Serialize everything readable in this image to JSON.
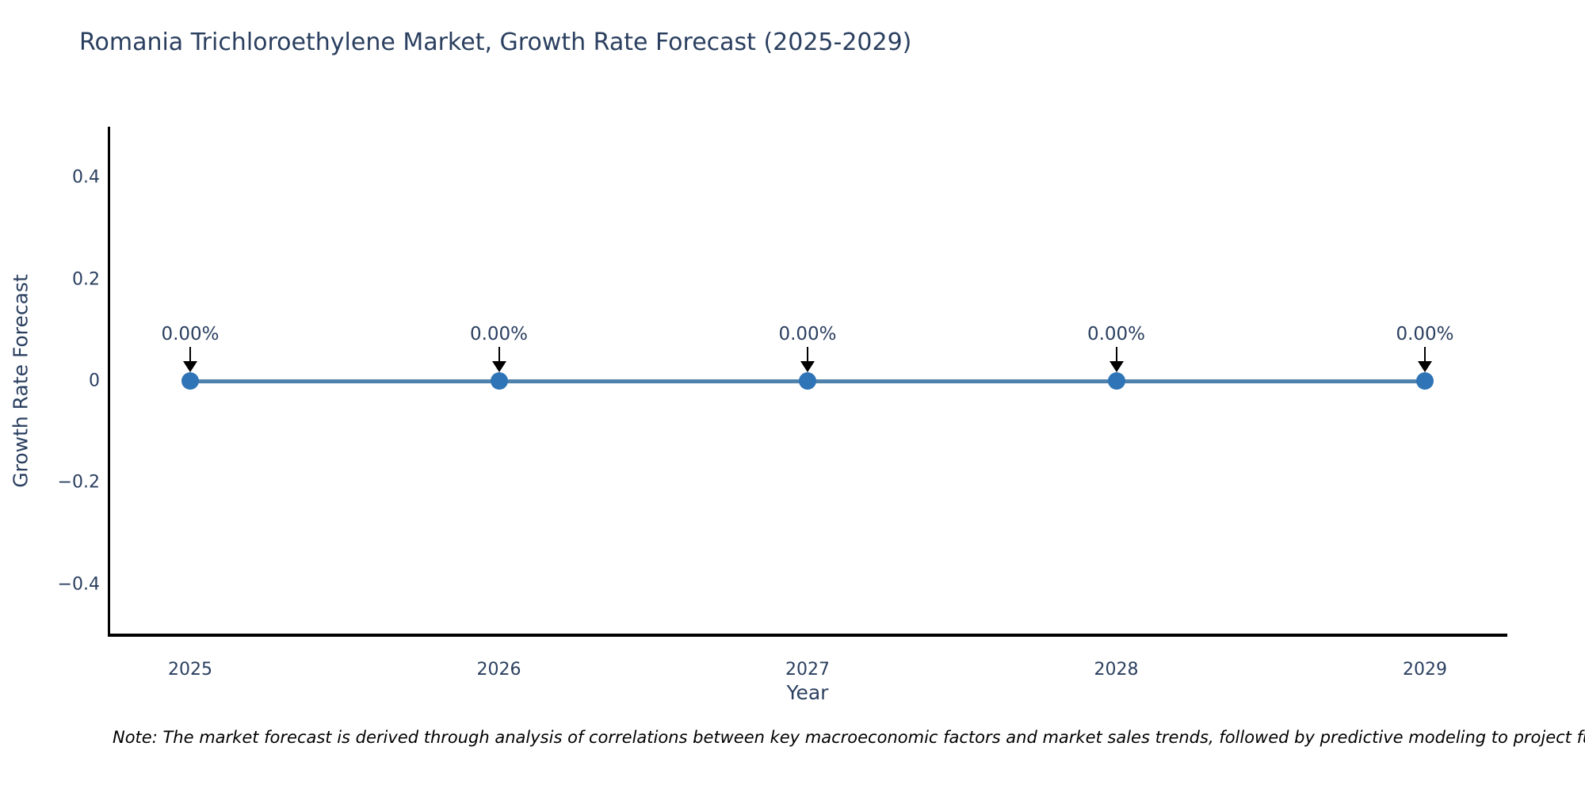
{
  "title": "Romania Trichloroethylene Market, Growth Rate Forecast (2025-2029)",
  "note": "Note: The market forecast is derived through analysis of correlations between key macroeconomic factors and market sales trends, followed by predictive modeling to project future sa",
  "colors": {
    "title_text": "#2a3f5f",
    "axis_text": "#2a3f5f",
    "axis_line": "#000000",
    "line": "#4e81ac",
    "marker": "#2e74b6",
    "arrow": "#000000",
    "note_text": "#000000",
    "background": "#ffffff"
  },
  "chart_data": {
    "type": "line",
    "title": "Romania Trichloroethylene Market, Growth Rate Forecast (2025-2029)",
    "xlabel": "Year",
    "ylabel": "Growth Rate Forecast",
    "x": [
      2025,
      2026,
      2027,
      2028,
      2029
    ],
    "series": [
      {
        "name": "Growth Rate Forecast",
        "values": [
          0,
          0,
          0,
          0,
          0
        ]
      }
    ],
    "point_labels": [
      "0.00%",
      "0.00%",
      "0.00%",
      "0.00%",
      "0.00%"
    ],
    "ytick_labels": [
      "0.4",
      "0.2",
      "0",
      "−0.2",
      "−0.4"
    ],
    "ytick_values": [
      0.4,
      0.2,
      0,
      -0.2,
      -0.4
    ],
    "ylim": [
      -0.5,
      0.5
    ],
    "grid": false,
    "legend": "none",
    "annotation_arrows": "down-to-point"
  }
}
